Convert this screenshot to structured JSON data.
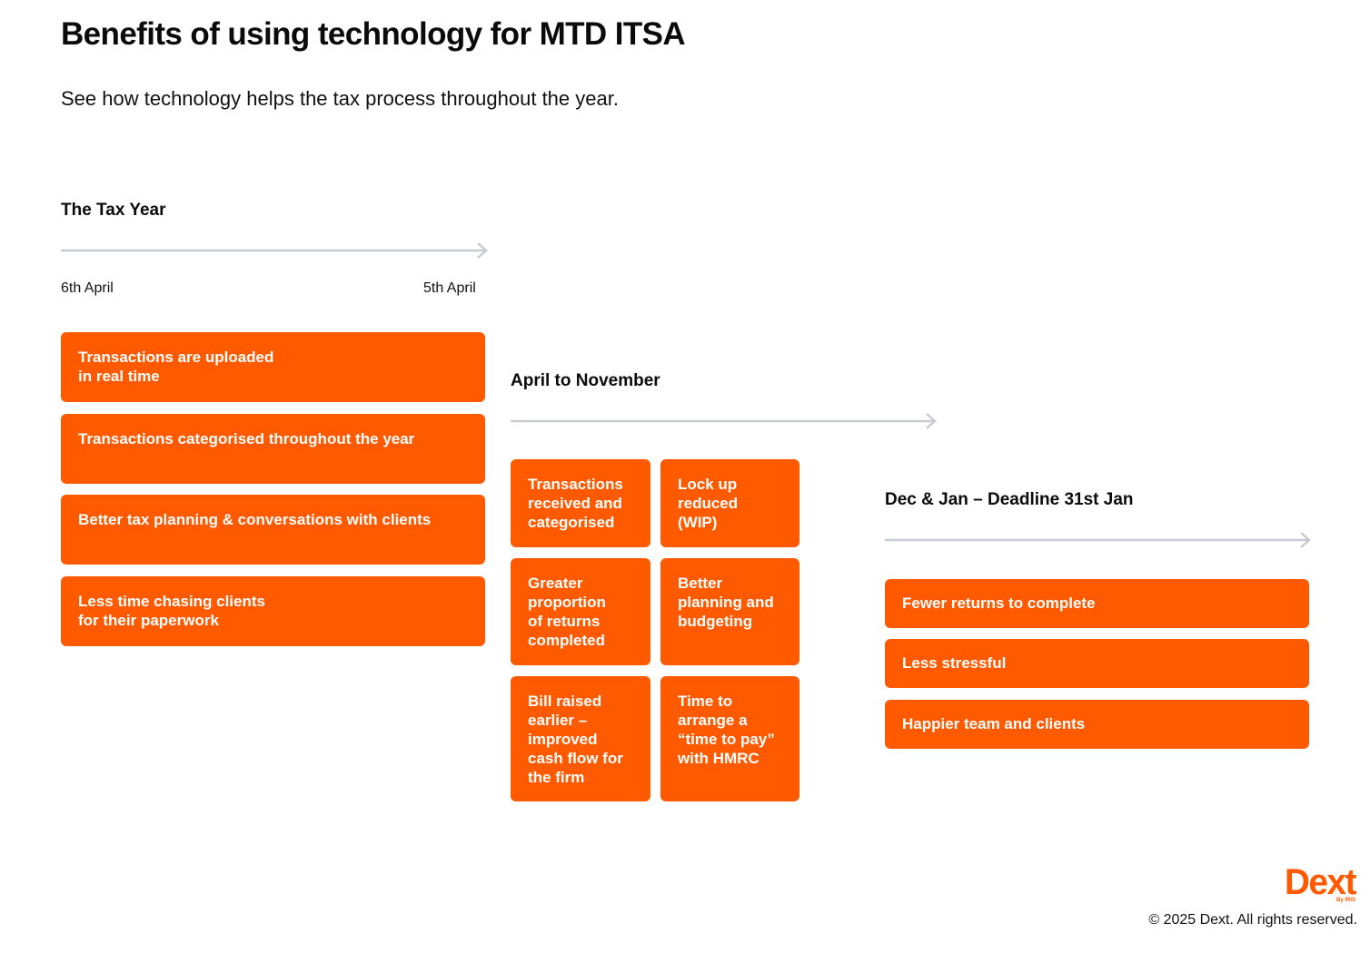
{
  "page": {
    "title": "Benefits of using technology for MTD ITSA",
    "subtitle": "See how technology helps the tax process throughout the year."
  },
  "colors": {
    "accent": "#ff5a00",
    "arrow": "#c8cbd0",
    "text": "#0b0b0b"
  },
  "sections": [
    {
      "heading": "The Tax Year",
      "start_label": "6th April",
      "end_label": "5th April",
      "cards": [
        "Transactions are uploaded\nin real time",
        "Transactions categorised throughout the year",
        "Better tax planning & conversations with clients",
        "Less time chasing clients\nfor their paperwork"
      ]
    },
    {
      "heading": "April to November",
      "cards": [
        "Transactions\nreceived and\ncategorised",
        "Lock up\nreduced\n(WIP)",
        "Greater\nproportion\nof returns\ncompleted",
        "Better\nplanning and\nbudgeting",
        "Bill raised\nearlier –\nimproved\ncash flow for\nthe firm",
        "Time to\narrange a\n“time to pay”\nwith HMRC"
      ]
    },
    {
      "heading": "Dec & Jan – Deadline 31st Jan",
      "cards": [
        "Fewer returns to complete",
        "Less stressful",
        "Happier team and clients"
      ]
    }
  ],
  "footer": {
    "logo_text": "Dext",
    "logo_subtext": "By IRIS",
    "copyright": "© 2025 Dext. All rights reserved."
  }
}
